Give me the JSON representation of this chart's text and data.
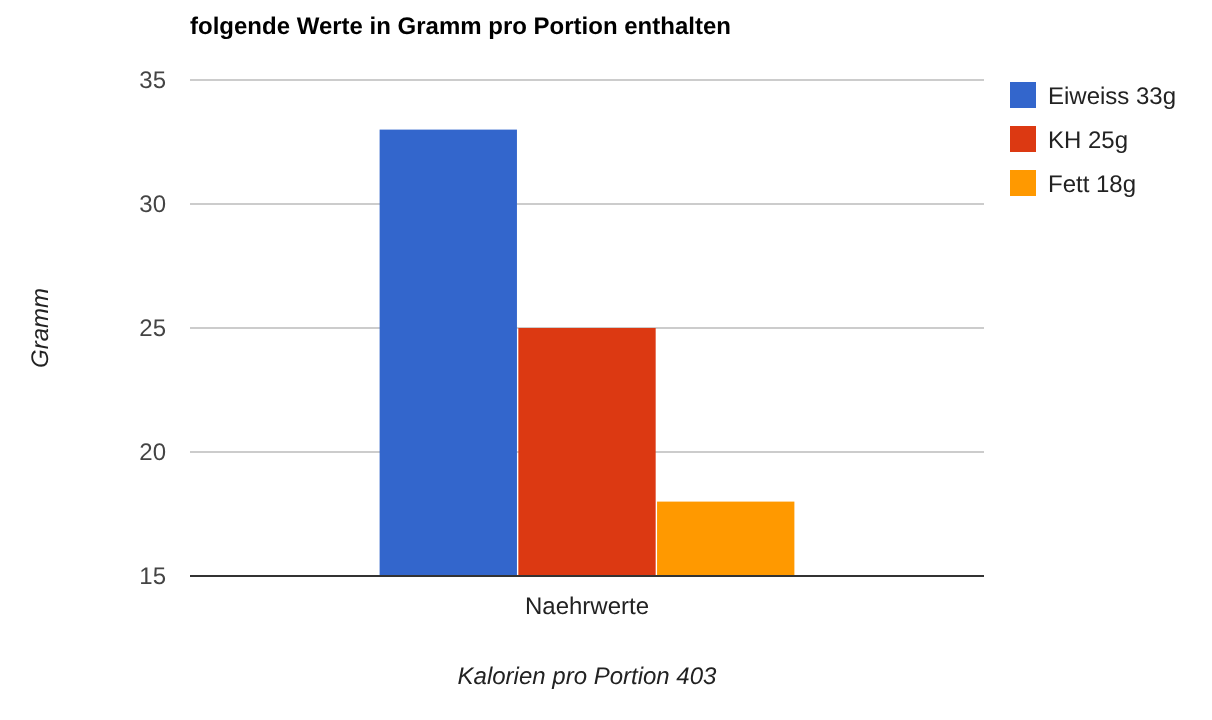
{
  "chart_data": {
    "type": "bar",
    "title": "folgende Werte in Gramm pro Portion enthalten",
    "xlabel": "Kalorien pro Portion 403",
    "ylabel": "Gramm",
    "categories": [
      "Naehrwerte"
    ],
    "series": [
      {
        "name": "Eiweiss 33g",
        "color": "#3366cc",
        "values": [
          33
        ]
      },
      {
        "name": "KH 25g",
        "color": "#dc3912",
        "values": [
          25
        ]
      },
      {
        "name": "Fett 18g",
        "color": "#ff9900",
        "values": [
          18
        ]
      }
    ],
    "ylim": [
      15,
      35
    ],
    "yticks": [
      15,
      20,
      25,
      30,
      35
    ],
    "grid": true,
    "legend": "right"
  }
}
